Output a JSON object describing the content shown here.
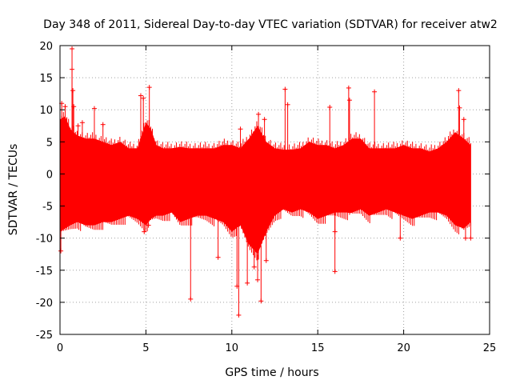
{
  "chart_data": {
    "type": "scatter",
    "title": "Day 348 of 2011, Sidereal Day-to-day VTEC variation (SDTVAR) for receiver atw2",
    "xlabel": "GPS time / hours",
    "ylabel": "SDTVAR / TECUs",
    "xlim": [
      0,
      25
    ],
    "ylim": [
      -25,
      20
    ],
    "xticks": [
      0,
      5,
      10,
      15,
      20,
      25
    ],
    "yticks": [
      -25,
      -20,
      -15,
      -10,
      -5,
      0,
      5,
      10,
      15,
      20
    ],
    "grid": true,
    "color": "#ff0000",
    "marker": "plus-with-errorbars",
    "envelope": {
      "x": [
        0.0,
        0.3,
        0.6,
        1.0,
        1.5,
        2.0,
        2.5,
        3.0,
        3.5,
        4.0,
        4.5,
        5.0,
        5.3,
        5.6,
        6.0,
        6.5,
        7.0,
        7.5,
        8.0,
        8.5,
        9.0,
        9.5,
        10.0,
        10.5,
        11.0,
        11.5,
        12.0,
        12.5,
        13.0,
        13.5,
        14.0,
        14.5,
        15.0,
        15.5,
        16.0,
        16.5,
        17.0,
        17.5,
        18.0,
        18.5,
        19.0,
        19.5,
        20.0,
        20.5,
        21.0,
        21.5,
        22.0,
        22.5,
        23.0,
        23.5,
        23.9
      ],
      "upper": [
        8.5,
        9.0,
        7.0,
        6.0,
        5.5,
        5.5,
        5.0,
        4.5,
        5.0,
        4.0,
        4.0,
        8.0,
        7.0,
        4.5,
        4.0,
        4.0,
        4.2,
        4.0,
        4.0,
        4.0,
        4.0,
        4.5,
        4.5,
        4.0,
        5.5,
        7.5,
        5.0,
        4.0,
        3.8,
        3.8,
        4.0,
        5.0,
        4.5,
        4.5,
        4.0,
        4.5,
        5.5,
        5.5,
        4.0,
        4.0,
        4.0,
        4.0,
        4.5,
        4.0,
        4.0,
        3.5,
        4.0,
        5.0,
        6.5,
        5.5,
        4.5
      ],
      "lower": [
        -9.0,
        -8.5,
        -8.0,
        -7.5,
        -8.0,
        -8.0,
        -7.5,
        -7.5,
        -7.0,
        -6.5,
        -7.0,
        -8.0,
        -7.0,
        -6.5,
        -6.5,
        -6.0,
        -7.5,
        -7.0,
        -6.5,
        -6.5,
        -7.0,
        -7.5,
        -9.0,
        -8.0,
        -11.0,
        -12.5,
        -9.0,
        -6.5,
        -5.5,
        -6.0,
        -5.5,
        -6.0,
        -7.0,
        -6.5,
        -6.0,
        -6.0,
        -6.0,
        -5.5,
        -6.5,
        -6.0,
        -5.5,
        -6.0,
        -6.5,
        -7.0,
        -6.5,
        -6.0,
        -6.0,
        -6.5,
        -8.0,
        -8.5,
        -7.5
      ]
    },
    "spikes": [
      {
        "x": 0.05,
        "y": -12.0
      },
      {
        "x": 0.1,
        "y": 11.0
      },
      {
        "x": 0.3,
        "y": 10.5
      },
      {
        "x": 0.7,
        "y": 19.5
      },
      {
        "x": 0.7,
        "y": 16.3
      },
      {
        "x": 0.75,
        "y": 13.0
      },
      {
        "x": 0.8,
        "y": 10.5
      },
      {
        "x": 1.05,
        "y": 7.5
      },
      {
        "x": 1.3,
        "y": 8.0
      },
      {
        "x": 2.0,
        "y": 10.2
      },
      {
        "x": 2.5,
        "y": 7.7
      },
      {
        "x": 4.7,
        "y": 12.2
      },
      {
        "x": 4.85,
        "y": 11.8
      },
      {
        "x": 4.9,
        "y": -9.0
      },
      {
        "x": 5.2,
        "y": 13.5
      },
      {
        "x": 5.15,
        "y": -8.0
      },
      {
        "x": 7.6,
        "y": -19.5
      },
      {
        "x": 9.2,
        "y": -13.0
      },
      {
        "x": 10.3,
        "y": -17.5
      },
      {
        "x": 10.4,
        "y": -22.0
      },
      {
        "x": 10.5,
        "y": 7.0
      },
      {
        "x": 10.9,
        "y": -17.0
      },
      {
        "x": 11.3,
        "y": -14.5
      },
      {
        "x": 11.5,
        "y": -16.5
      },
      {
        "x": 11.55,
        "y": 9.3
      },
      {
        "x": 11.7,
        "y": -19.8
      },
      {
        "x": 11.9,
        "y": 8.5
      },
      {
        "x": 12.0,
        "y": -13.5
      },
      {
        "x": 13.1,
        "y": 13.2
      },
      {
        "x": 13.25,
        "y": 10.8
      },
      {
        "x": 15.7,
        "y": 10.4
      },
      {
        "x": 16.0,
        "y": -15.2
      },
      {
        "x": 16.0,
        "y": -9.0
      },
      {
        "x": 16.8,
        "y": 13.4
      },
      {
        "x": 16.85,
        "y": 11.5
      },
      {
        "x": 16.85,
        "y": -6.0
      },
      {
        "x": 18.3,
        "y": 12.8
      },
      {
        "x": 19.8,
        "y": -10.0
      },
      {
        "x": 23.2,
        "y": 13.0
      },
      {
        "x": 23.25,
        "y": 10.3
      },
      {
        "x": 23.5,
        "y": 8.5
      },
      {
        "x": 23.6,
        "y": -10.0
      },
      {
        "x": 23.9,
        "y": -10.0
      }
    ]
  }
}
